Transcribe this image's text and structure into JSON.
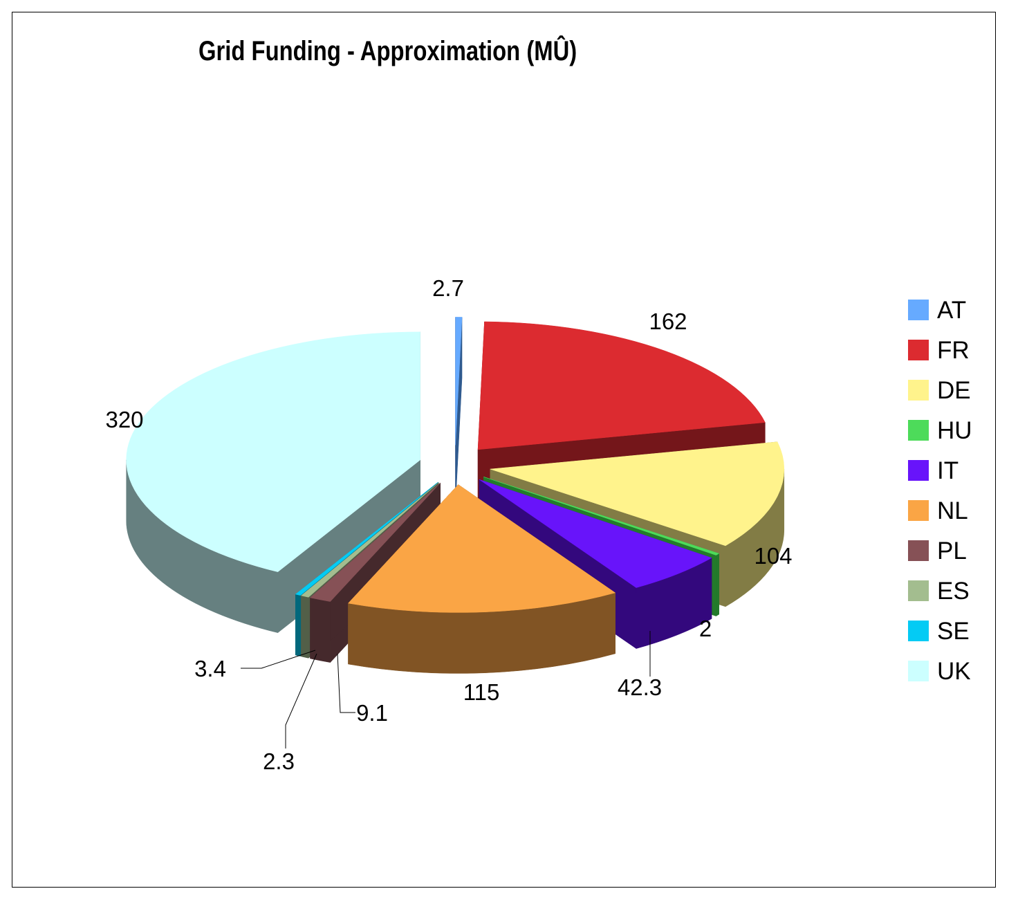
{
  "chart_data": {
    "type": "pie",
    "title": "Grid Funding - Approximation (MÛ)",
    "slices": [
      {
        "label": "AT",
        "value": 2.7,
        "value_label": "2.7",
        "color": "#66aaff",
        "side_color": "#2f5a8f"
      },
      {
        "label": "FR",
        "value": 162,
        "value_label": "162",
        "color": "#dc2b30",
        "side_color": "#74161a"
      },
      {
        "label": "DE",
        "value": 104,
        "value_label": "104",
        "color": "#fff38c",
        "side_color": "#827c45"
      },
      {
        "label": "HU",
        "value": 2,
        "value_label": "2",
        "color": "#4ddb5a",
        "side_color": "#237a2b"
      },
      {
        "label": "IT",
        "value": 42.3,
        "value_label": "42.3",
        "color": "#6814fa",
        "side_color": "#33087d"
      },
      {
        "label": "NL",
        "value": 115,
        "value_label": "115",
        "color": "#faa545",
        "side_color": "#815424"
      },
      {
        "label": "PL",
        "value": 9.1,
        "value_label": "9.1",
        "color": "#865156",
        "side_color": "#45292c"
      },
      {
        "label": "ES",
        "value": 3.4,
        "value_label": "3.4",
        "color": "#a3bd8f",
        "side_color": "#525f48"
      },
      {
        "label": "SE",
        "value": 2.3,
        "value_label": "2.3",
        "color": "#04cbf4",
        "side_color": "#02687c"
      },
      {
        "label": "UK",
        "value": 320,
        "value_label": "320",
        "color": "#ccffff",
        "side_color": "#668080"
      }
    ],
    "legend_position": "right"
  }
}
